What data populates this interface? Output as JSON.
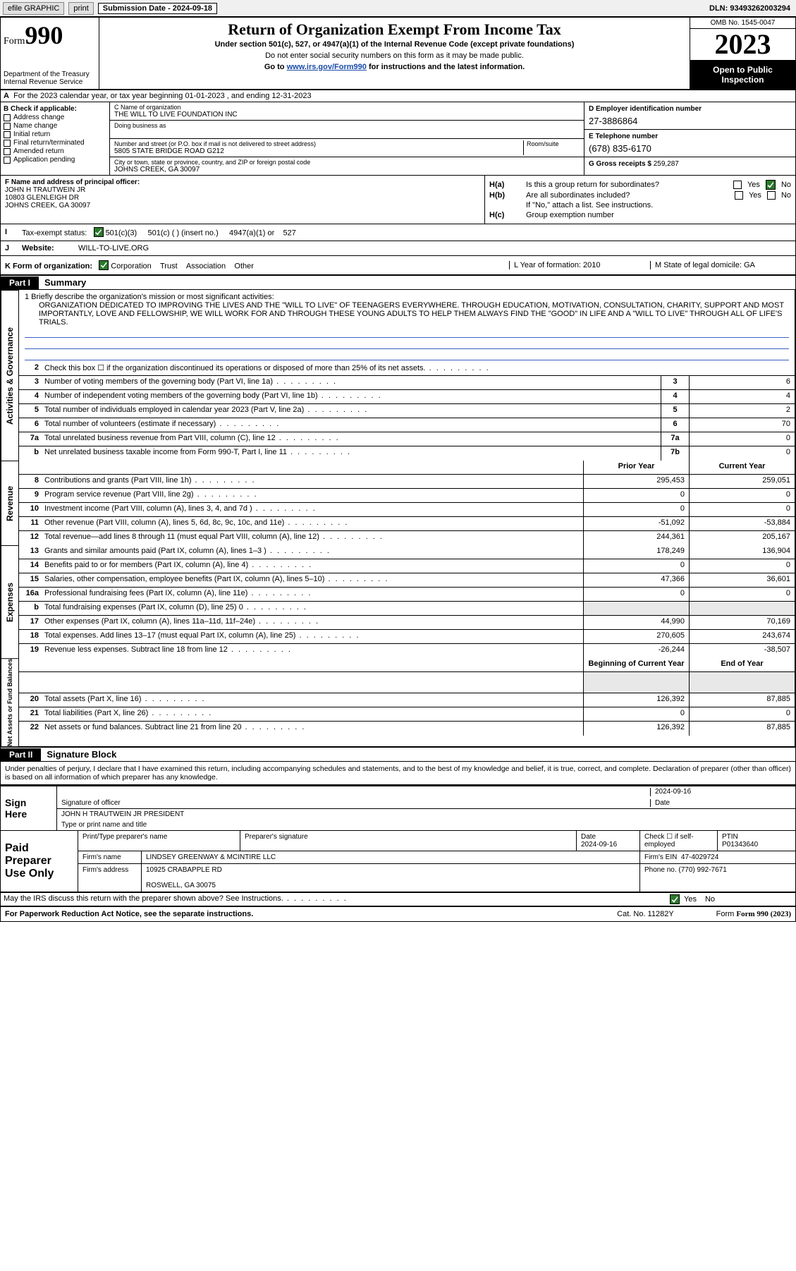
{
  "topbar": {
    "efile": "efile GRAPHIC",
    "print": "print",
    "sub_label": "Submission Date - 2024-09-18",
    "dln": "DLN: 93493262003294"
  },
  "header": {
    "form_prefix": "Form",
    "form_num": "990",
    "dept": "Department of the Treasury\nInternal Revenue Service",
    "title": "Return of Organization Exempt From Income Tax",
    "sub": "Under section 501(c), 527, or 4947(a)(1) of the Internal Revenue Code (except private foundations)",
    "sub2": "Do not enter social security numbers on this form as it may be made public.",
    "goto_pre": "Go to ",
    "goto_link": "www.irs.gov/Form990",
    "goto_post": " for instructions and the latest information.",
    "omb": "OMB No. 1545-0047",
    "year": "2023",
    "open": "Open to Public Inspection"
  },
  "rowA": "For the 2023 calendar year, or tax year beginning 01-01-2023    , and ending 12-31-2023",
  "B": {
    "title": "B Check if applicable:",
    "items": [
      "Address change",
      "Name change",
      "Initial return",
      "Final return/terminated",
      "Amended return",
      "Application pending"
    ]
  },
  "C": {
    "lbl_name": "C Name of organization",
    "name": "THE WILL TO LIVE FOUNDATION INC",
    "dba_lbl": "Doing business as",
    "addr_lbl": "Number and street (or P.O. box if mail is not delivered to street address)",
    "room_lbl": "Room/suite",
    "addr": "5805 STATE BRIDGE ROAD G212",
    "city_lbl": "City or town, state or province, country, and ZIP or foreign postal code",
    "city": "JOHNS CREEK, GA  30097"
  },
  "D": {
    "ein_lbl": "D Employer identification number",
    "ein": "27-3886864",
    "tel_lbl": "E Telephone number",
    "tel": "(678) 835-6170",
    "gross_lbl": "G Gross receipts $",
    "gross": "259,287"
  },
  "F": {
    "lbl": "F Name and address of principal officer:",
    "name": "JOHN H TRAUTWEIN JR",
    "addr1": "10803 GLENLEIGH DR",
    "addr2": "JOHNS CREEK, GA  30097"
  },
  "H": {
    "a": "Is this a group return for subordinates?",
    "b": "Are all subordinates included?",
    "b2": "If \"No,\" attach a list. See instructions.",
    "c": "Group exemption number",
    "yes": "Yes",
    "no": "No"
  },
  "I": {
    "lbl": "Tax-exempt status:",
    "opts": [
      "501(c)(3)",
      "501(c) (  ) (insert no.)",
      "4947(a)(1) or",
      "527"
    ]
  },
  "J": {
    "lbl": "Website:",
    "val": "WILL-TO-LIVE.ORG"
  },
  "K": {
    "lbl": "K Form of organization:",
    "opts": [
      "Corporation",
      "Trust",
      "Association",
      "Other"
    ],
    "L": "L Year of formation: 2010",
    "M": "M State of legal domicile: GA"
  },
  "part1": {
    "hdr": "Part I",
    "title": "Summary"
  },
  "mission": {
    "lead": "1   Briefly describe the organization's mission or most significant activities:",
    "text": "ORGANIZATION DEDICATED TO IMPROVING THE LIVES AND THE \"WILL TO LIVE\" OF TEENAGERS EVERYWHERE. THROUGH EDUCATION, MOTIVATION, CONSULTATION, CHARITY, SUPPORT AND MOST IMPORTANTLY, LOVE AND FELLOWSHIP, WE WILL WORK FOR AND THROUGH THESE YOUNG ADULTS TO HELP THEM ALWAYS FIND THE \"GOOD\" IN LIFE AND A \"WILL TO LIVE\" THROUGH ALL OF LIFE'S TRIALS."
  },
  "governance": [
    {
      "n": "2",
      "d": "Check this box ☐ if the organization discontinued its operations or disposed of more than 25% of its net assets.",
      "ln": "",
      "v": ""
    },
    {
      "n": "3",
      "d": "Number of voting members of the governing body (Part VI, line 1a)",
      "ln": "3",
      "v": "6"
    },
    {
      "n": "4",
      "d": "Number of independent voting members of the governing body (Part VI, line 1b)",
      "ln": "4",
      "v": "4"
    },
    {
      "n": "5",
      "d": "Total number of individuals employed in calendar year 2023 (Part V, line 2a)",
      "ln": "5",
      "v": "2"
    },
    {
      "n": "6",
      "d": "Total number of volunteers (estimate if necessary)",
      "ln": "6",
      "v": "70"
    },
    {
      "n": "7a",
      "d": "Total unrelated business revenue from Part VIII, column (C), line 12",
      "ln": "7a",
      "v": "0"
    },
    {
      "n": "b",
      "d": "Net unrelated business taxable income from Form 990-T, Part I, line 11",
      "ln": "7b",
      "v": "0"
    }
  ],
  "col_hdrs": {
    "prior": "Prior Year",
    "current": "Current Year",
    "beg": "Beginning of Current Year",
    "end": "End of Year"
  },
  "revenue": [
    {
      "n": "8",
      "d": "Contributions and grants (Part VIII, line 1h)",
      "p": "295,453",
      "c": "259,051"
    },
    {
      "n": "9",
      "d": "Program service revenue (Part VIII, line 2g)",
      "p": "0",
      "c": "0"
    },
    {
      "n": "10",
      "d": "Investment income (Part VIII, column (A), lines 3, 4, and 7d )",
      "p": "0",
      "c": "0"
    },
    {
      "n": "11",
      "d": "Other revenue (Part VIII, column (A), lines 5, 6d, 8c, 9c, 10c, and 11e)",
      "p": "-51,092",
      "c": "-53,884"
    },
    {
      "n": "12",
      "d": "Total revenue—add lines 8 through 11 (must equal Part VIII, column (A), line 12)",
      "p": "244,361",
      "c": "205,167"
    }
  ],
  "expenses": [
    {
      "n": "13",
      "d": "Grants and similar amounts paid (Part IX, column (A), lines 1–3 )",
      "p": "178,249",
      "c": "136,904"
    },
    {
      "n": "14",
      "d": "Benefits paid to or for members (Part IX, column (A), line 4)",
      "p": "0",
      "c": "0"
    },
    {
      "n": "15",
      "d": "Salaries, other compensation, employee benefits (Part IX, column (A), lines 5–10)",
      "p": "47,366",
      "c": "36,601"
    },
    {
      "n": "16a",
      "d": "Professional fundraising fees (Part IX, column (A), line 11e)",
      "p": "0",
      "c": "0"
    },
    {
      "n": "b",
      "d": "Total fundraising expenses (Part IX, column (D), line 25) 0",
      "p": "",
      "c": "",
      "shade": true
    },
    {
      "n": "17",
      "d": "Other expenses (Part IX, column (A), lines 11a–11d, 11f–24e)",
      "p": "44,990",
      "c": "70,169"
    },
    {
      "n": "18",
      "d": "Total expenses. Add lines 13–17 (must equal Part IX, column (A), line 25)",
      "p": "270,605",
      "c": "243,674"
    },
    {
      "n": "19",
      "d": "Revenue less expenses. Subtract line 18 from line 12",
      "p": "-26,244",
      "c": "-38,507"
    }
  ],
  "netassets": [
    {
      "n": "20",
      "d": "Total assets (Part X, line 16)",
      "p": "126,392",
      "c": "87,885"
    },
    {
      "n": "21",
      "d": "Total liabilities (Part X, line 26)",
      "p": "0",
      "c": "0"
    },
    {
      "n": "22",
      "d": "Net assets or fund balances. Subtract line 21 from line 20",
      "p": "126,392",
      "c": "87,885"
    }
  ],
  "part2": {
    "hdr": "Part II",
    "title": "Signature Block"
  },
  "penalty": "Under penalties of perjury, I declare that I have examined this return, including accompanying schedules and statements, and to the best of my knowledge and belief, it is true, correct, and complete. Declaration of preparer (other than officer) is based on all information of which preparer has any knowledge.",
  "sign": {
    "l1": "Sign",
    "l2": "Here",
    "sig_lbl": "Signature of officer",
    "date_lbl": "Date",
    "date": "2024-09-16",
    "name": "JOHN H TRAUTWEIN JR  PRESIDENT",
    "name_lbl": "Type or print name and title"
  },
  "prep": {
    "l1": "Paid",
    "l2": "Preparer",
    "l3": "Use Only",
    "h1": "Print/Type preparer's name",
    "h2": "Preparer's signature",
    "h3": "Date",
    "h4": "Check ☐ if self-employed",
    "h5": "PTIN",
    "date": "2024-09-16",
    "ptin": "P01343640",
    "firm_lbl": "Firm's name",
    "firm": "LINDSEY GREENWAY & MCINTIRE LLC",
    "ein_lbl": "Firm's EIN",
    "ein": "47-4029724",
    "addr_lbl": "Firm's address",
    "addr1": "10925 CRABAPPLE RD",
    "addr2": "ROSWELL, GA  30075",
    "phone_lbl": "Phone no.",
    "phone": "(770) 992-7671"
  },
  "discuss": "May the IRS discuss this return with the preparer shown above? See Instructions.",
  "footer": {
    "left": "For Paperwork Reduction Act Notice, see the separate instructions.",
    "cat": "Cat. No. 11282Y",
    "form": "Form 990 (2023)"
  },
  "side_labels": {
    "gov": "Activities & Governance",
    "rev": "Revenue",
    "exp": "Expenses",
    "net": "Net Assets or Fund Balances"
  }
}
